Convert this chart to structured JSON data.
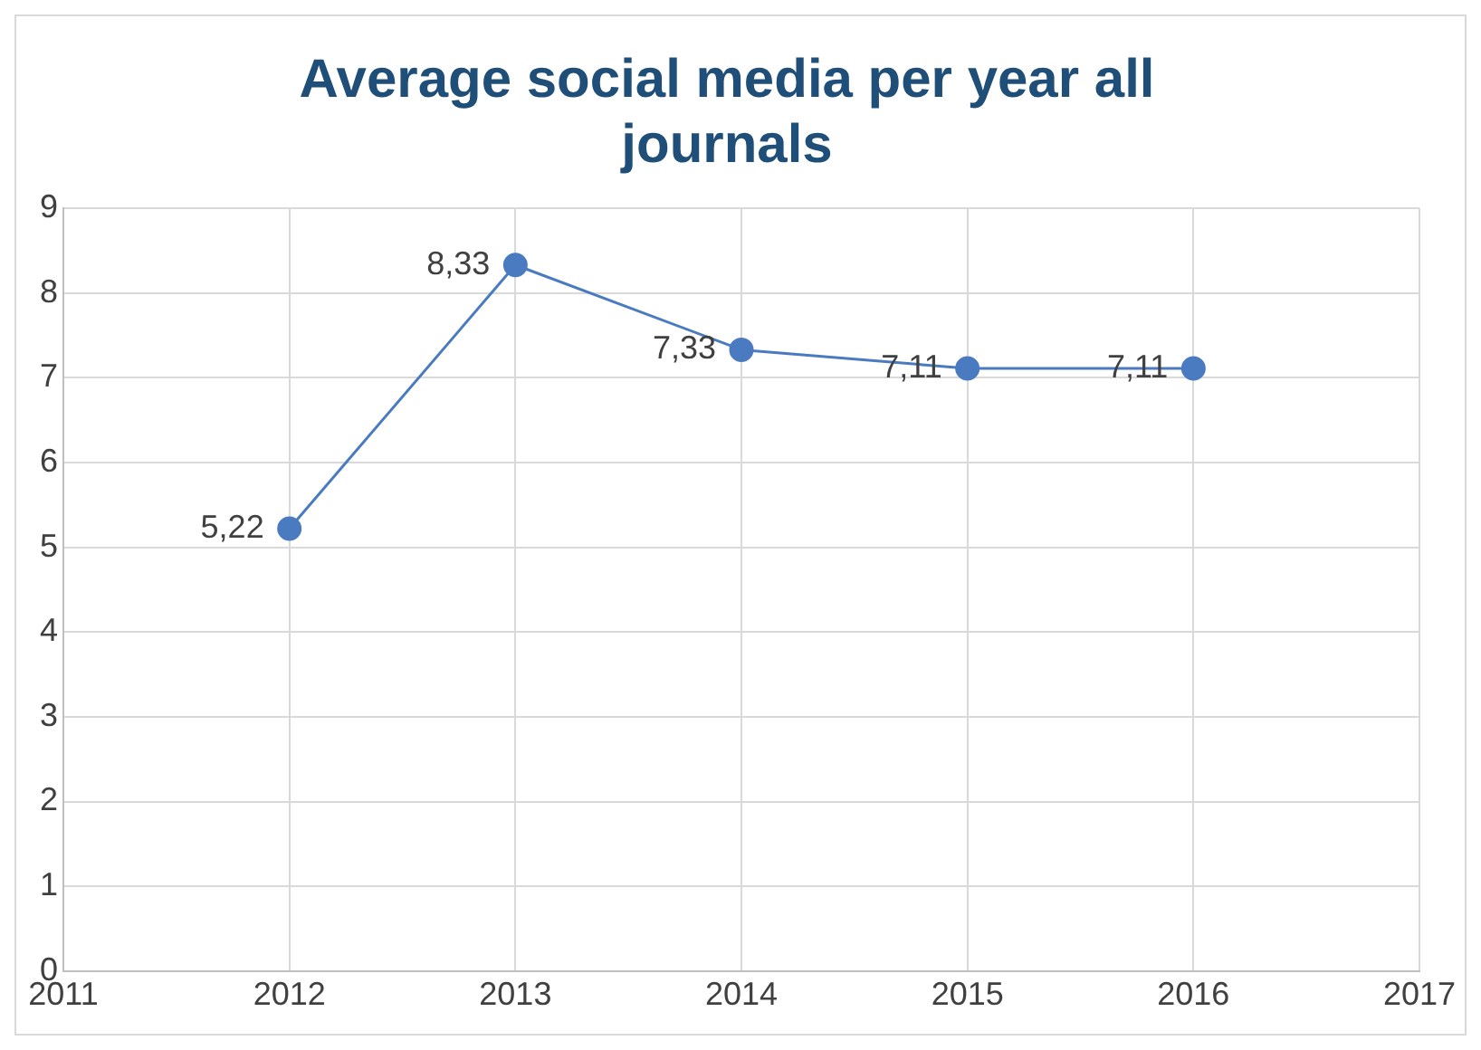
{
  "chart_data": {
    "type": "line",
    "title": "Average social media per year all journals",
    "x": [
      2012,
      2013,
      2014,
      2015,
      2016
    ],
    "series": [
      {
        "color": "#4a7bc0",
        "values": [
          5.22,
          8.33,
          7.33,
          7.11,
          7.11
        ],
        "value_labels": [
          "5,22",
          "8,33",
          "7,33",
          "7,11",
          "7,11"
        ]
      }
    ],
    "xlim": [
      2011,
      2017
    ],
    "xticks": [
      2011,
      2012,
      2013,
      2014,
      2015,
      2016,
      2017
    ],
    "ylim": [
      0,
      9
    ],
    "yticks": [
      0,
      1,
      2,
      3,
      4,
      5,
      6,
      7,
      8,
      9
    ],
    "grid": true,
    "legend": false,
    "marker": "circle",
    "line_style": "solid"
  }
}
